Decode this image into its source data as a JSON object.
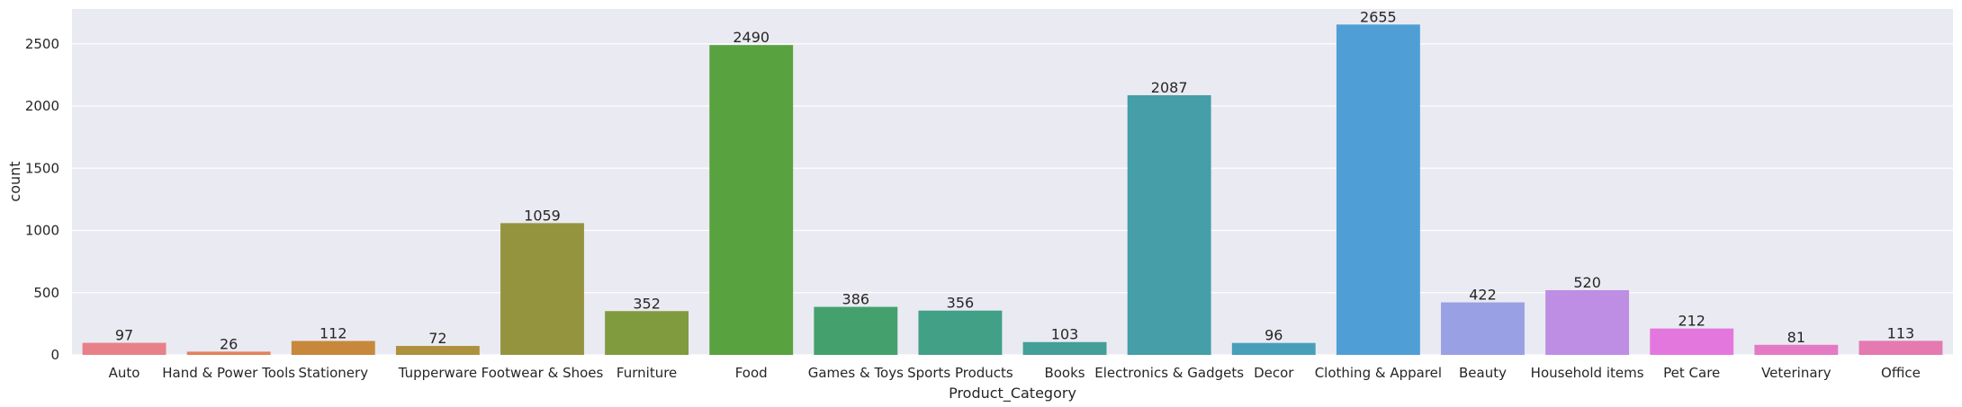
{
  "chart_data": {
    "type": "bar",
    "title": "",
    "xlabel": "Product_Category",
    "ylabel": "count",
    "categories": [
      "Auto",
      "Hand & Power Tools",
      "Stationery",
      "Tupperware",
      "Footwear & Shoes",
      "Furniture",
      "Food",
      "Games & Toys",
      "Sports Products",
      "Books",
      "Electronics & Gadgets",
      "Decor",
      "Clothing & Apparel",
      "Beauty",
      "Household items",
      "Pet Care",
      "Veterinary",
      "Office"
    ],
    "values": [
      97,
      26,
      112,
      72,
      1059,
      352,
      2490,
      386,
      356,
      103,
      2087,
      96,
      2655,
      422,
      520,
      212,
      81,
      113
    ],
    "colors": [
      "#e8808a",
      "#e2825a",
      "#c8883c",
      "#ad913c",
      "#95943e",
      "#7f9b3e",
      "#58a23f",
      "#44a06d",
      "#42a087",
      "#439f98",
      "#459ea8",
      "#489fba",
      "#4f9fd6",
      "#9aa0e4",
      "#bd8ee4",
      "#e477dd",
      "#e47ac4",
      "#e47ab0"
    ],
    "ylim": [
      0,
      2780
    ],
    "yticks": [
      0,
      500,
      1000,
      1500,
      2000,
      2500
    ],
    "grid": true,
    "legend": "none"
  }
}
